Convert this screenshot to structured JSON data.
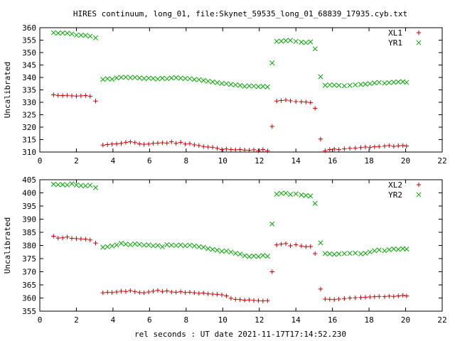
{
  "title": "HIRES continuum, long_01, file:Skynet_59535_long_01_68839_17935.cyb.txt",
  "xlabel": "rel seconds : UT date 2021-11-17T17:14:52.230",
  "chart_data": [
    {
      "type": "scatter",
      "ylabel": "Uncalibrated",
      "xlim": [
        0,
        22
      ],
      "ylim": [
        310,
        360
      ],
      "xticks": [
        0,
        2,
        4,
        6,
        8,
        10,
        12,
        14,
        16,
        18,
        20,
        22
      ],
      "yticks": [
        310,
        315,
        320,
        325,
        330,
        335,
        340,
        345,
        350,
        355,
        360
      ],
      "grid": false,
      "legend": "top-right",
      "series": [
        {
          "name": "XL1",
          "color": "#cc0000",
          "marker": "plus",
          "x": [
            0.75,
            1.0,
            1.25,
            1.5,
            1.75,
            2.0,
            2.25,
            2.5,
            2.75,
            3.05,
            3.45,
            3.7,
            3.95,
            4.2,
            4.45,
            4.7,
            4.95,
            5.2,
            5.45,
            5.7,
            5.95,
            6.2,
            6.45,
            6.7,
            6.95,
            7.2,
            7.45,
            7.7,
            7.95,
            8.2,
            8.45,
            8.7,
            8.95,
            9.2,
            9.45,
            9.7,
            9.95,
            10.2,
            10.45,
            10.7,
            10.95,
            11.2,
            11.45,
            11.7,
            11.95,
            12.2,
            12.45,
            12.7,
            12.95,
            13.2,
            13.45,
            13.7,
            14.0,
            14.3,
            14.55,
            14.8,
            15.05,
            15.35,
            15.6,
            15.85,
            16.1,
            16.35,
            16.65,
            16.95,
            17.25,
            17.55,
            17.8,
            18.05,
            18.3,
            18.55,
            18.85,
            19.1,
            19.35,
            19.6,
            19.85,
            20.05
          ],
          "y": [
            333,
            332.8,
            332.7,
            332.8,
            332.6,
            332.5,
            332.6,
            332.7,
            332.4,
            330.5,
            312.8,
            313,
            313.2,
            313.3,
            313.5,
            313.9,
            314.1,
            313.8,
            313.3,
            313.1,
            313.2,
            313.5,
            313.6,
            313.7,
            313.6,
            314.1,
            313.5,
            313.9,
            313.2,
            313.4,
            312.9,
            312.6,
            312.2,
            312.0,
            311.9,
            311.5,
            311.0,
            311.2,
            311.0,
            310.9,
            311.0,
            310.8,
            310.7,
            310.9,
            310.5,
            311.0,
            310.5,
            320.3,
            330.5,
            330.7,
            330.9,
            330.6,
            330.3,
            330.2,
            330.1,
            329.9,
            327.6,
            315.2,
            310.5,
            311.0,
            311.2,
            311.0,
            311.3,
            311.5,
            311.6,
            311.8,
            312.0,
            311.9,
            312.1,
            312.2,
            312.4,
            312.6,
            312.3,
            312.5,
            312.6,
            312.4
          ]
        },
        {
          "name": "YR1",
          "color": "#00aa00",
          "marker": "cross",
          "x": [
            0.75,
            1.0,
            1.25,
            1.5,
            1.75,
            2.0,
            2.25,
            2.5,
            2.75,
            3.05,
            3.45,
            3.7,
            3.95,
            4.2,
            4.45,
            4.7,
            4.95,
            5.2,
            5.45,
            5.7,
            5.95,
            6.2,
            6.45,
            6.7,
            6.95,
            7.2,
            7.45,
            7.7,
            7.95,
            8.2,
            8.45,
            8.7,
            8.95,
            9.2,
            9.45,
            9.7,
            9.95,
            10.2,
            10.45,
            10.7,
            10.95,
            11.2,
            11.45,
            11.7,
            11.95,
            12.2,
            12.45,
            12.7,
            12.95,
            13.2,
            13.45,
            13.7,
            14.0,
            14.3,
            14.55,
            14.8,
            15.05,
            15.35,
            15.6,
            15.85,
            16.1,
            16.35,
            16.65,
            16.95,
            17.25,
            17.55,
            17.8,
            18.05,
            18.3,
            18.55,
            18.85,
            19.1,
            19.35,
            19.6,
            19.85,
            20.05
          ],
          "y": [
            358,
            357.8,
            357.9,
            357.8,
            357.5,
            357,
            357,
            356.9,
            356.6,
            355.9,
            339.2,
            339.5,
            339.3,
            339.8,
            340.0,
            340.1,
            339.9,
            340.0,
            339.8,
            339.6,
            339.7,
            339.6,
            339.4,
            339.7,
            339.5,
            339.8,
            339.9,
            339.7,
            339.6,
            339.5,
            339.2,
            339.1,
            338.8,
            338.5,
            338.2,
            337.9,
            337.6,
            337.5,
            337.2,
            337.0,
            336.8,
            336.4,
            336.6,
            336.5,
            336.3,
            336.4,
            336.2,
            345.8,
            354.5,
            354.6,
            354.8,
            354.9,
            354.5,
            354.2,
            354.0,
            354.3,
            351.5,
            340.3,
            336.8,
            337.0,
            336.9,
            336.8,
            336.6,
            336.8,
            337.0,
            337.2,
            337.3,
            337.5,
            337.8,
            338.0,
            337.7,
            337.9,
            338.1,
            338.2,
            338.3,
            338.0
          ]
        }
      ]
    },
    {
      "type": "scatter",
      "ylabel": "Uncalibrated",
      "xlim": [
        0,
        22
      ],
      "ylim": [
        355,
        405
      ],
      "xticks": [
        0,
        2,
        4,
        6,
        8,
        10,
        12,
        14,
        16,
        18,
        20,
        22
      ],
      "yticks": [
        355,
        360,
        365,
        370,
        375,
        380,
        385,
        390,
        395,
        400,
        405
      ],
      "grid": false,
      "legend": "top-right",
      "series": [
        {
          "name": "XL2",
          "color": "#cc0000",
          "marker": "plus",
          "x": [
            0.75,
            1.0,
            1.25,
            1.5,
            1.75,
            2.0,
            2.25,
            2.5,
            2.75,
            3.05,
            3.45,
            3.7,
            3.95,
            4.2,
            4.45,
            4.7,
            4.95,
            5.2,
            5.45,
            5.7,
            5.95,
            6.2,
            6.45,
            6.7,
            6.95,
            7.2,
            7.45,
            7.7,
            7.95,
            8.2,
            8.45,
            8.7,
            8.95,
            9.2,
            9.45,
            9.7,
            9.95,
            10.2,
            10.45,
            10.7,
            10.95,
            11.2,
            11.45,
            11.7,
            11.95,
            12.2,
            12.45,
            12.7,
            12.95,
            13.2,
            13.45,
            13.7,
            14.0,
            14.3,
            14.55,
            14.8,
            15.05,
            15.35,
            15.6,
            15.85,
            16.1,
            16.35,
            16.65,
            16.95,
            17.25,
            17.55,
            17.8,
            18.05,
            18.3,
            18.55,
            18.85,
            19.1,
            19.35,
            19.6,
            19.85,
            20.05
          ],
          "y": [
            383.5,
            382.8,
            382.9,
            383.2,
            382.7,
            382.6,
            382.5,
            382.4,
            382.1,
            380.9,
            362.0,
            362.2,
            362.1,
            362.3,
            362.6,
            362.5,
            362.8,
            362.4,
            362.1,
            362.0,
            362.3,
            362.6,
            362.9,
            362.5,
            362.7,
            362.3,
            362.2,
            362.4,
            362.1,
            362.2,
            362.0,
            361.8,
            361.9,
            361.6,
            361.5,
            361.4,
            361.2,
            360.8,
            359.9,
            359.5,
            359.4,
            359.2,
            359.3,
            359.1,
            359.0,
            358.9,
            359.0,
            370.0,
            380.2,
            380.5,
            380.7,
            379.9,
            380.3,
            379.8,
            379.5,
            379.6,
            376.9,
            363.4,
            359.6,
            359.5,
            359.4,
            359.6,
            359.8,
            360.0,
            360.1,
            360.2,
            360.3,
            360.4,
            360.5,
            360.6,
            360.5,
            360.7,
            360.6,
            360.8,
            361.0,
            360.8
          ]
        },
        {
          "name": "YR2",
          "color": "#00aa00",
          "marker": "cross",
          "x": [
            0.75,
            1.0,
            1.25,
            1.5,
            1.75,
            2.0,
            2.25,
            2.5,
            2.75,
            3.05,
            3.45,
            3.7,
            3.95,
            4.2,
            4.45,
            4.7,
            4.95,
            5.2,
            5.45,
            5.7,
            5.95,
            6.2,
            6.45,
            6.7,
            6.95,
            7.2,
            7.45,
            7.7,
            7.95,
            8.2,
            8.45,
            8.7,
            8.95,
            9.2,
            9.45,
            9.7,
            9.95,
            10.2,
            10.45,
            10.7,
            10.95,
            11.2,
            11.45,
            11.7,
            11.95,
            12.2,
            12.45,
            12.7,
            12.95,
            13.2,
            13.45,
            13.7,
            14.0,
            14.3,
            14.55,
            14.8,
            15.05,
            15.35,
            15.6,
            15.85,
            16.1,
            16.35,
            16.65,
            16.95,
            17.25,
            17.55,
            17.8,
            18.05,
            18.3,
            18.55,
            18.85,
            19.1,
            19.35,
            19.6,
            19.85,
            20.05
          ],
          "y": [
            403.3,
            403.1,
            403.2,
            403.0,
            403.5,
            403.0,
            402.8,
            402.7,
            402.9,
            402.0,
            379.3,
            379.5,
            379.8,
            380.2,
            380.8,
            380.5,
            380.3,
            380.6,
            380.4,
            380.1,
            380.2,
            379.9,
            380.0,
            379.5,
            380.3,
            380.1,
            380.0,
            380.2,
            379.9,
            380.1,
            379.8,
            379.5,
            379.3,
            378.8,
            378.5,
            378.2,
            377.8,
            377.9,
            377.5,
            377.0,
            376.7,
            376.1,
            375.8,
            376.0,
            375.8,
            376.2,
            375.9,
            388.2,
            399.5,
            399.8,
            399.9,
            399.4,
            399.6,
            399.2,
            399.0,
            398.8,
            396.0,
            381.0,
            376.9,
            376.8,
            376.6,
            376.8,
            376.9,
            377.0,
            377.1,
            376.8,
            377.0,
            377.5,
            378.0,
            378.3,
            378.0,
            378.4,
            378.7,
            378.5,
            378.8,
            378.6
          ]
        }
      ]
    }
  ]
}
